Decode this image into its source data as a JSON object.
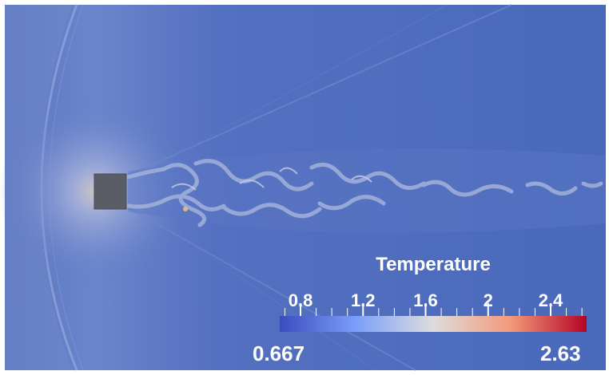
{
  "colorbar": {
    "title": "Temperature",
    "min_label": "0.667",
    "max_label": "2.63",
    "range": [
      0.667,
      2.63
    ],
    "tick_labels": [
      {
        "value": 0.8,
        "text": "0.8"
      },
      {
        "value": 1.2,
        "text": "1.2"
      },
      {
        "value": 1.6,
        "text": "1.6"
      },
      {
        "value": 2.0,
        "text": "2"
      },
      {
        "value": 2.4,
        "text": "2.4"
      }
    ],
    "colors": [
      "#3b4cc0",
      "#7b9ff9",
      "#dddddd",
      "#f49a7b",
      "#b40426"
    ]
  },
  "scene": {
    "background_color": "#4d6bbd",
    "obstacle_color": "#5a5c66"
  }
}
